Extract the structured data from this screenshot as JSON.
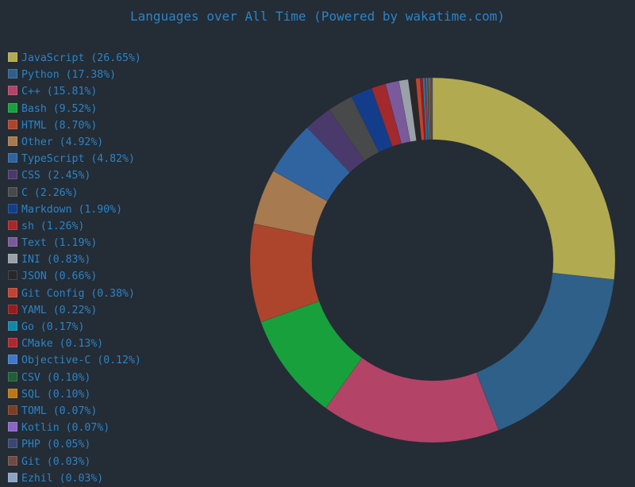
{
  "chart_data": {
    "type": "pie",
    "title": "Languages over All Time (Powered by wakatime.com)",
    "legend_position": "left",
    "style": "donut",
    "series": [
      {
        "label": "JavaScript",
        "legend": "JavaScript (26.65%)",
        "value": 26.65,
        "color": "#b2aa50"
      },
      {
        "label": "Python",
        "legend": "Python (17.38%)",
        "value": 17.38,
        "color": "#2e6089"
      },
      {
        "label": "C++",
        "legend": "C++ (15.81%)",
        "value": 15.81,
        "color": "#b34367"
      },
      {
        "label": "Bash",
        "legend": "Bash (9.52%)",
        "value": 9.52,
        "color": "#18a03d"
      },
      {
        "label": "HTML",
        "legend": "HTML (8.70%)",
        "value": 8.7,
        "color": "#ad452c"
      },
      {
        "label": "Other",
        "legend": "Other (4.92%)",
        "value": 4.92,
        "color": "#a77a4f"
      },
      {
        "label": "TypeScript",
        "legend": "TypeScript (4.82%)",
        "value": 4.82,
        "color": "#2f64a0"
      },
      {
        "label": "CSS",
        "legend": "CSS (2.45%)",
        "value": 2.45,
        "color": "#4a3a6c"
      },
      {
        "label": "C",
        "legend": "C (2.26%)",
        "value": 2.26,
        "color": "#47494b"
      },
      {
        "label": "Markdown",
        "legend": "Markdown (1.90%)",
        "value": 1.9,
        "color": "#133d8b"
      },
      {
        "label": "sh",
        "legend": "sh (1.26%)",
        "value": 1.26,
        "color": "#a2292c"
      },
      {
        "label": "Text",
        "legend": "Text (1.19%)",
        "value": 1.19,
        "color": "#7a5a9a"
      },
      {
        "label": "INI",
        "legend": "INI (0.83%)",
        "value": 0.83,
        "color": "#9aa1a8"
      },
      {
        "label": "JSON",
        "legend": "JSON (0.66%)",
        "value": 0.66,
        "color": "#282828"
      },
      {
        "label": "Git Config",
        "legend": "Git Config (0.38%)",
        "value": 0.38,
        "color": "#c04430"
      },
      {
        "label": "YAML",
        "legend": "YAML (0.22%)",
        "value": 0.22,
        "color": "#981b20"
      },
      {
        "label": "Go",
        "legend": "Go (0.17%)",
        "value": 0.17,
        "color": "#1287a8"
      },
      {
        "label": "CMake",
        "legend": "CMake (0.13%)",
        "value": 0.13,
        "color": "#b3262d"
      },
      {
        "label": "Objective-C",
        "legend": "Objective-C (0.12%)",
        "value": 0.12,
        "color": "#4278c8"
      },
      {
        "label": "CSV",
        "legend": "CSV (0.10%)",
        "value": 0.1,
        "color": "#1f6039"
      },
      {
        "label": "SQL",
        "legend": "SQL (0.10%)",
        "value": 0.1,
        "color": "#b9781a"
      },
      {
        "label": "TOML",
        "legend": "TOML (0.07%)",
        "value": 0.07,
        "color": "#7a3d25"
      },
      {
        "label": "Kotlin",
        "legend": "Kotlin (0.07%)",
        "value": 0.07,
        "color": "#8a65c6"
      },
      {
        "label": "PHP",
        "legend": "PHP (0.05%)",
        "value": 0.05,
        "color": "#3c4673"
      },
      {
        "label": "Git",
        "legend": "Git (0.03%)",
        "value": 0.03,
        "color": "#6f4a43"
      },
      {
        "label": "Ezhil",
        "legend": "Ezhil (0.03%)",
        "value": 0.03,
        "color": "#8ba4c4"
      }
    ]
  }
}
